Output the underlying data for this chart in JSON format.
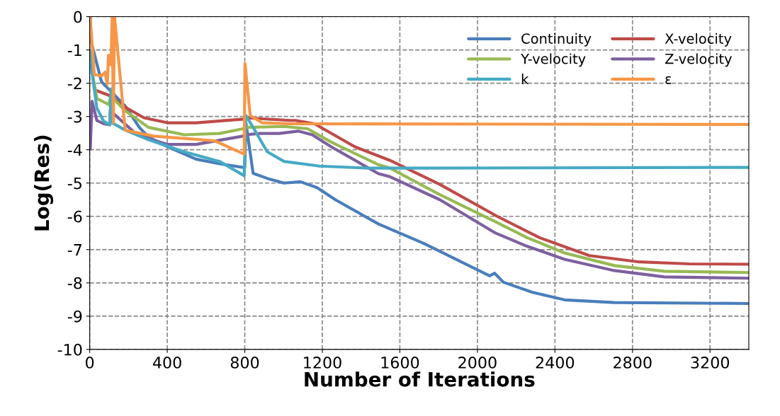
{
  "chart_data": {
    "type": "line",
    "xlabel": "Number of Iterations",
    "ylabel": "Log(Res)",
    "xlim": [
      0,
      3400
    ],
    "ylim": [
      -10,
      0
    ],
    "xticks": [
      0,
      400,
      800,
      1200,
      1600,
      2000,
      2400,
      2800,
      3200
    ],
    "yticks": [
      -10,
      -9,
      -8,
      -7,
      -6,
      -5,
      -4,
      -3,
      -2,
      -1,
      0
    ],
    "grid": true,
    "legend": "top right",
    "marker": "none",
    "series": [
      {
        "name": "Continuity",
        "color": "#4a7ebb",
        "x": [
          3,
          6,
          61,
          97,
          183,
          256,
          304,
          402,
          548,
          670,
          791,
          800,
          806,
          843,
          916,
          1002,
          1087,
          1173,
          1270,
          1490,
          1722,
          2063,
          2089,
          2134,
          2282,
          2449,
          2706,
          3400
        ],
        "values": [
          0,
          -0.72,
          -1.96,
          -2.17,
          -2.68,
          -3.33,
          -3.62,
          -3.91,
          -4.28,
          -4.42,
          -4.53,
          -4.53,
          -3.19,
          -4.71,
          -4.86,
          -5.0,
          -4.96,
          -5.14,
          -5.51,
          -6.23,
          -6.81,
          -7.79,
          -7.71,
          -7.98,
          -8.28,
          -8.51,
          -8.59,
          -8.62
        ]
      },
      {
        "name": "X-velocity",
        "color": "#be4b48",
        "x": [
          30,
          97,
          122,
          183,
          280,
          402,
          548,
          791,
          800,
          1035,
          1063,
          1160,
          1368,
          1549,
          1806,
          2102,
          2320,
          2577,
          2835,
          3092,
          3400
        ],
        "values": [
          -2.21,
          -2.36,
          -2.46,
          -2.72,
          -3.04,
          -3.19,
          -3.19,
          -3.08,
          -3.04,
          -3.12,
          -3.12,
          -3.22,
          -3.91,
          -4.32,
          -5.04,
          -6.0,
          -6.64,
          -7.18,
          -7.37,
          -7.43,
          -7.44
        ]
      },
      {
        "name": "Y-velocity",
        "color": "#98b954",
        "x": [
          6,
          37,
          97,
          110,
          183,
          304,
          487,
          670,
          791,
          800,
          1002,
          1124,
          1246,
          1490,
          1549,
          1806,
          2089,
          2256,
          2449,
          2706,
          2964,
          3400
        ],
        "values": [
          -1.45,
          -2.46,
          -2.64,
          -2.39,
          -2.83,
          -3.33,
          -3.55,
          -3.51,
          -3.37,
          -3.33,
          -3.3,
          -3.37,
          -3.77,
          -4.45,
          -4.55,
          -5.35,
          -6.15,
          -6.64,
          -7.1,
          -7.48,
          -7.65,
          -7.69
        ]
      },
      {
        "name": "Z-velocity",
        "color": "#7d60a0",
        "x": [
          3,
          12,
          37,
          73,
          104,
          106,
          134,
          244,
          402,
          548,
          791,
          800,
          880,
          977,
          1075,
          1148,
          1246,
          1490,
          1549,
          1806,
          2089,
          2243,
          2449,
          2706,
          2964,
          3400
        ],
        "values": [
          -3.99,
          -2.54,
          -3.12,
          -3.22,
          -3.25,
          -2.83,
          -2.97,
          -3.55,
          -3.84,
          -3.84,
          -3.59,
          -3.55,
          -3.51,
          -3.51,
          -3.44,
          -3.55,
          -3.91,
          -4.72,
          -4.81,
          -5.5,
          -6.49,
          -6.87,
          -7.29,
          -7.63,
          -7.82,
          -7.86
        ]
      },
      {
        "name": "k",
        "color": "#46aac5",
        "x": [
          2,
          12,
          37,
          73,
          104,
          110,
          116,
          183,
          304,
          487,
          670,
          797,
          806,
          843,
          916,
          1002,
          1185,
          1429,
          1734,
          3400
        ],
        "values": [
          -1.01,
          -1.67,
          -2.75,
          -3.15,
          -3.25,
          -2.17,
          -3.19,
          -3.41,
          -3.7,
          -4.06,
          -4.35,
          -4.78,
          -2.97,
          -3.33,
          -4.06,
          -4.35,
          -4.49,
          -4.55,
          -4.55,
          -4.53
        ]
      },
      {
        "name": "ε",
        "color": "#f79646",
        "x": [
          2,
          24,
          61,
          79,
          91,
          97,
          110,
          116,
          122,
          128,
          183,
          329,
          487,
          645,
          797,
          801,
          828,
          889,
          1035,
          3400
        ],
        "values": [
          0,
          -1.74,
          -1.78,
          -1.67,
          -2.03,
          -1.16,
          -1.45,
          0,
          -3.19,
          0,
          -3.41,
          -3.59,
          -3.66,
          -3.73,
          -4.13,
          -1.41,
          -2.97,
          -3.19,
          -3.22,
          -3.24
        ]
      }
    ]
  }
}
